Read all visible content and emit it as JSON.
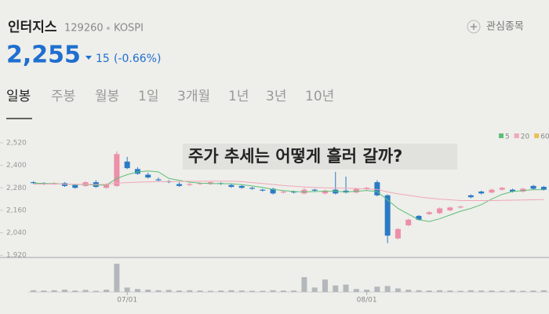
{
  "header": {
    "name": "인터지스",
    "code": "129260",
    "market": "KOSPI",
    "price": "2,255",
    "change": "15",
    "change_pct": "(-0.66%)",
    "watch": "관심종목"
  },
  "tabs": {
    "items": [
      "일봉",
      "주봉",
      "월봉",
      "1일",
      "3개월",
      "1년",
      "3년",
      "10년"
    ],
    "selected": 0
  },
  "overlay": "주가 추세는 어떻게 흘러 갈까?",
  "chart_data": {
    "type": "candlestick",
    "categories": [
      null,
      null,
      null,
      null,
      null,
      null,
      null,
      null,
      null,
      "07/01",
      null,
      null,
      null,
      null,
      null,
      null,
      null,
      null,
      null,
      null,
      null,
      null,
      null,
      null,
      null,
      null,
      null,
      null,
      null,
      null,
      null,
      null,
      "08/01",
      null,
      null,
      null,
      null,
      null,
      null,
      null,
      null,
      null,
      null,
      null,
      null,
      null,
      null,
      null,
      null,
      null
    ],
    "open": [
      2310,
      2305,
      2300,
      2305,
      2295,
      2290,
      2310,
      2280,
      2290,
      2420,
      2380,
      2350,
      2325,
      2315,
      2300,
      2295,
      2300,
      2300,
      2305,
      2295,
      2290,
      2280,
      2270,
      2275,
      2255,
      2260,
      2250,
      2270,
      2250,
      2270,
      2265,
      2255,
      2275,
      2310,
      2240,
      2010,
      2080,
      2130,
      2140,
      2145,
      2160,
      2175,
      2240,
      2260,
      2255,
      2270,
      2270,
      2260,
      2290,
      2285
    ],
    "high": [
      2315,
      2310,
      2310,
      2310,
      2300,
      2315,
      2320,
      2305,
      2475,
      2445,
      2390,
      2360,
      2335,
      2320,
      2310,
      2305,
      2310,
      2315,
      2310,
      2300,
      2295,
      2285,
      2275,
      2280,
      2265,
      2265,
      2280,
      2275,
      2270,
      2365,
      2340,
      2280,
      2285,
      2320,
      2245,
      2065,
      2115,
      2135,
      2155,
      2175,
      2180,
      2185,
      2245,
      2265,
      2275,
      2285,
      2275,
      2280,
      2295,
      2290
    ],
    "low": [
      2300,
      2295,
      2295,
      2285,
      2275,
      2285,
      2280,
      2275,
      2285,
      2380,
      2350,
      2330,
      2315,
      2305,
      2285,
      2290,
      2295,
      2295,
      2295,
      2280,
      2275,
      2270,
      2260,
      2245,
      2250,
      2250,
      2245,
      2260,
      2245,
      2245,
      2250,
      2250,
      2265,
      2235,
      1985,
      2005,
      2075,
      2105,
      2135,
      2140,
      2155,
      2170,
      2225,
      2245,
      2250,
      2265,
      2255,
      2255,
      2270,
      2265
    ],
    "close": [
      2305,
      2300,
      2305,
      2290,
      2280,
      2310,
      2285,
      2300,
      2460,
      2385,
      2355,
      2335,
      2320,
      2310,
      2290,
      2300,
      2305,
      2310,
      2300,
      2285,
      2280,
      2275,
      2265,
      2250,
      2260,
      2255,
      2270,
      2265,
      2265,
      2250,
      2255,
      2275,
      2280,
      2240,
      2025,
      2060,
      2110,
      2110,
      2150,
      2170,
      2175,
      2180,
      2230,
      2250,
      2270,
      2280,
      2260,
      2275,
      2275,
      2270
    ],
    "volume": [
      6,
      5,
      6,
      8,
      5,
      7,
      4,
      8,
      95,
      15,
      10,
      8,
      6,
      7,
      5,
      6,
      5,
      4,
      5,
      6,
      5,
      4,
      4,
      6,
      5,
      5,
      50,
      15,
      42,
      22,
      25,
      10,
      8,
      18,
      20,
      12,
      8,
      6,
      5,
      6,
      5,
      4,
      6,
      5,
      5,
      4,
      6,
      4,
      5,
      6
    ],
    "up_color": "#ec8fa8",
    "down_color": "#2a7bc4",
    "volume_color": "#b4b8bc",
    "series": [
      {
        "name": "5",
        "color": "#5cbf7a",
        "values": [
          2305,
          2303,
          2302,
          2300,
          2298,
          2298,
          2295,
          2295,
          2330,
          2350,
          2365,
          2370,
          2365,
          2330,
          2320,
          2310,
          2305,
          2303,
          2302,
          2302,
          2297,
          2290,
          2282,
          2272,
          2265,
          2260,
          2258,
          2260,
          2262,
          2262,
          2258,
          2262,
          2265,
          2260,
          2215,
          2170,
          2140,
          2110,
          2100,
          2115,
          2135,
          2155,
          2170,
          2190,
          2220,
          2245,
          2260,
          2265,
          2270,
          2270
        ]
      },
      {
        "name": "20",
        "color": "#f0a8b8",
        "values": [
          2300,
          2300,
          2300,
          2300,
          2299,
          2299,
          2298,
          2298,
          2305,
          2308,
          2310,
          2312,
          2313,
          2313,
          2314,
          2315,
          2315,
          2316,
          2316,
          2315,
          2313,
          2308,
          2303,
          2298,
          2292,
          2288,
          2285,
          2282,
          2280,
          2279,
          2278,
          2276,
          2274,
          2272,
          2258,
          2248,
          2240,
          2232,
          2225,
          2220,
          2216,
          2212,
          2212,
          2212,
          2212,
          2213,
          2214,
          2215,
          2216,
          2218
        ]
      },
      {
        "name": "60",
        "color": "#e8c15a",
        "values": [
          null,
          null,
          null,
          null,
          null,
          null,
          null,
          null,
          null,
          null,
          null,
          null,
          null,
          null,
          null,
          null,
          null,
          null,
          null,
          null,
          null,
          null,
          null,
          null,
          null,
          null,
          null,
          null,
          null,
          null,
          null,
          null,
          null,
          null,
          null,
          null,
          null,
          null,
          null,
          null,
          null,
          null,
          null,
          null,
          null,
          null,
          null,
          null,
          null,
          null
        ]
      }
    ],
    "ylim": [
      1900,
      2570
    ],
    "yticks": [
      {
        "value": 2520,
        "label": "2,520"
      },
      {
        "value": 2400,
        "label": "2,400"
      },
      {
        "value": 2280,
        "label": "2,280"
      },
      {
        "value": 2160,
        "label": "2,160"
      },
      {
        "value": 2040,
        "label": "2,040"
      },
      {
        "value": 1920,
        "label": "1,920"
      }
    ],
    "vlim": [
      0,
      100
    ]
  }
}
